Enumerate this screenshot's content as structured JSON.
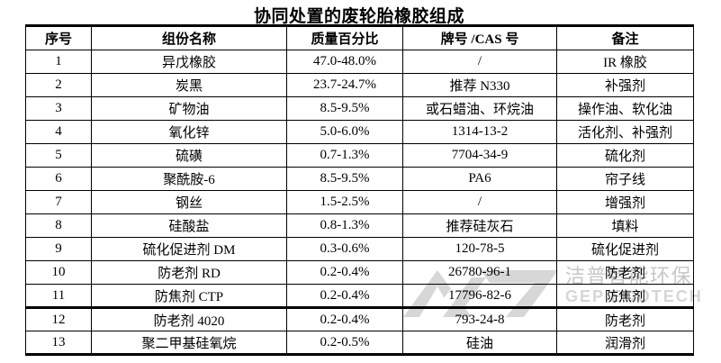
{
  "title": "协同处置的废轮胎橡胶组成",
  "table": {
    "headers": [
      "序号",
      "组份名称",
      "质量百分比",
      "牌号 /CAS 号",
      "备注"
    ],
    "rows": [
      [
        "1",
        "异戊橡胶",
        "47.0-48.0%",
        "/",
        "IR 橡胶"
      ],
      [
        "2",
        "炭黑",
        "23.7-24.7%",
        "推荐 N330",
        "补强剂"
      ],
      [
        "3",
        "矿物油",
        "8.5-9.5%",
        "或石蜡油、环烷油",
        "操作油、软化油"
      ],
      [
        "4",
        "氧化锌",
        "5.0-6.0%",
        "1314-13-2",
        "活化剂、补强剂"
      ],
      [
        "5",
        "硫磺",
        "0.7-1.3%",
        "7704-34-9",
        "硫化剂"
      ],
      [
        "6",
        "聚酰胺-6",
        "8.5-9.5%",
        "PA6",
        "帘子线"
      ],
      [
        "7",
        "钢丝",
        "1.5-2.5%",
        "/",
        "增强剂"
      ],
      [
        "8",
        "硅酸盐",
        "0.8-1.3%",
        "推荐硅灰石",
        "填料"
      ],
      [
        "9",
        "硫化促进剂 DM",
        "0.3-0.6%",
        "120-78-5",
        "硫化促进剂"
      ],
      [
        "10",
        "防老剂 RD",
        "0.2-0.4%",
        "26780-96-1",
        "防老剂"
      ],
      [
        "11",
        "防焦剂 CTP",
        "0.2-0.4%",
        "17796-82-6",
        "防焦剂"
      ],
      [
        "12",
        "防老剂 4020",
        "0.2-0.4%",
        "793-24-8",
        "防老剂"
      ],
      [
        "13",
        "聚二甲基硅氧烷",
        "0.2-0.5%",
        "硅油",
        "润滑剂"
      ]
    ],
    "thick_divider_before_row": "12",
    "border_color": "#000000"
  },
  "watermark": {
    "cn": "洁普智能环保",
    "en": "GEP ECOTECH",
    "logo_color": "#d7d7d7",
    "text_color": "#c7c7c7"
  }
}
